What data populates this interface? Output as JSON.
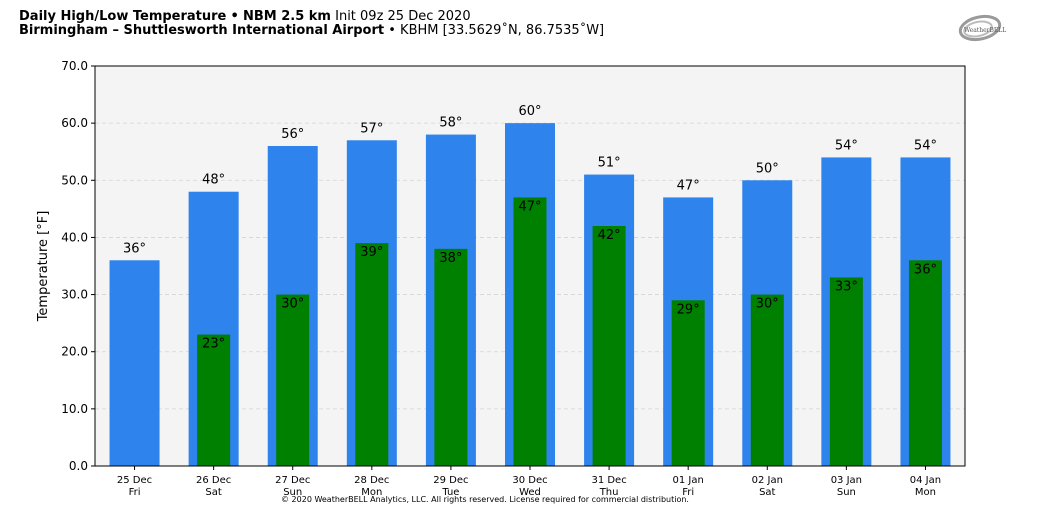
{
  "header": {
    "title": "Daily High/Low Temperature",
    "sep": "•",
    "model": "NBM 2.5 km",
    "init": "Init 09z 25 Dec 2020",
    "location": "Birmingham – Shuttlesworth International Airport",
    "station": "KBHM [33.5629˚N, 86.7535˚W]"
  },
  "logo": {
    "text": "WeatherBELL"
  },
  "copyright": "© 2020 WeatherBELL Analytics, LLC. All rights reserved. License required for commercial distribution.",
  "colors": {
    "high": "#2e83ec",
    "low": "#008000",
    "plot_bg": "#f4f4f4"
  },
  "chart_data": {
    "type": "bar",
    "ylabel": "Temperature [°F]",
    "ylim": [
      0,
      70
    ],
    "yticks": [
      "0.0",
      "10.0",
      "20.0",
      "30.0",
      "40.0",
      "50.0",
      "60.0",
      "70.0"
    ],
    "grid": true,
    "categories": [
      "25 Dec",
      "26 Dec",
      "27 Dec",
      "28 Dec",
      "29 Dec",
      "30 Dec",
      "31 Dec",
      "01 Jan",
      "02 Jan",
      "03 Jan",
      "04 Jan"
    ],
    "weekdays": [
      "Fri",
      "Sat",
      "Sun",
      "Mon",
      "Tue",
      "Wed",
      "Thu",
      "Fri",
      "Sat",
      "Sun",
      "Mon"
    ],
    "series": [
      {
        "values": [
          36,
          48,
          56,
          57,
          58,
          60,
          51,
          47,
          50,
          54,
          54
        ],
        "labels": [
          "36°",
          "48°",
          "56°",
          "57°",
          "58°",
          "60°",
          "51°",
          "47°",
          "50°",
          "54°",
          "54°"
        ]
      },
      {
        "values": [
          null,
          23,
          30,
          39,
          38,
          47,
          42,
          29,
          30,
          33,
          36
        ],
        "labels": [
          "",
          "23°",
          "30°",
          "39°",
          "38°",
          "47°",
          "42°",
          "29°",
          "30°",
          "33°",
          "36°"
        ]
      }
    ]
  }
}
